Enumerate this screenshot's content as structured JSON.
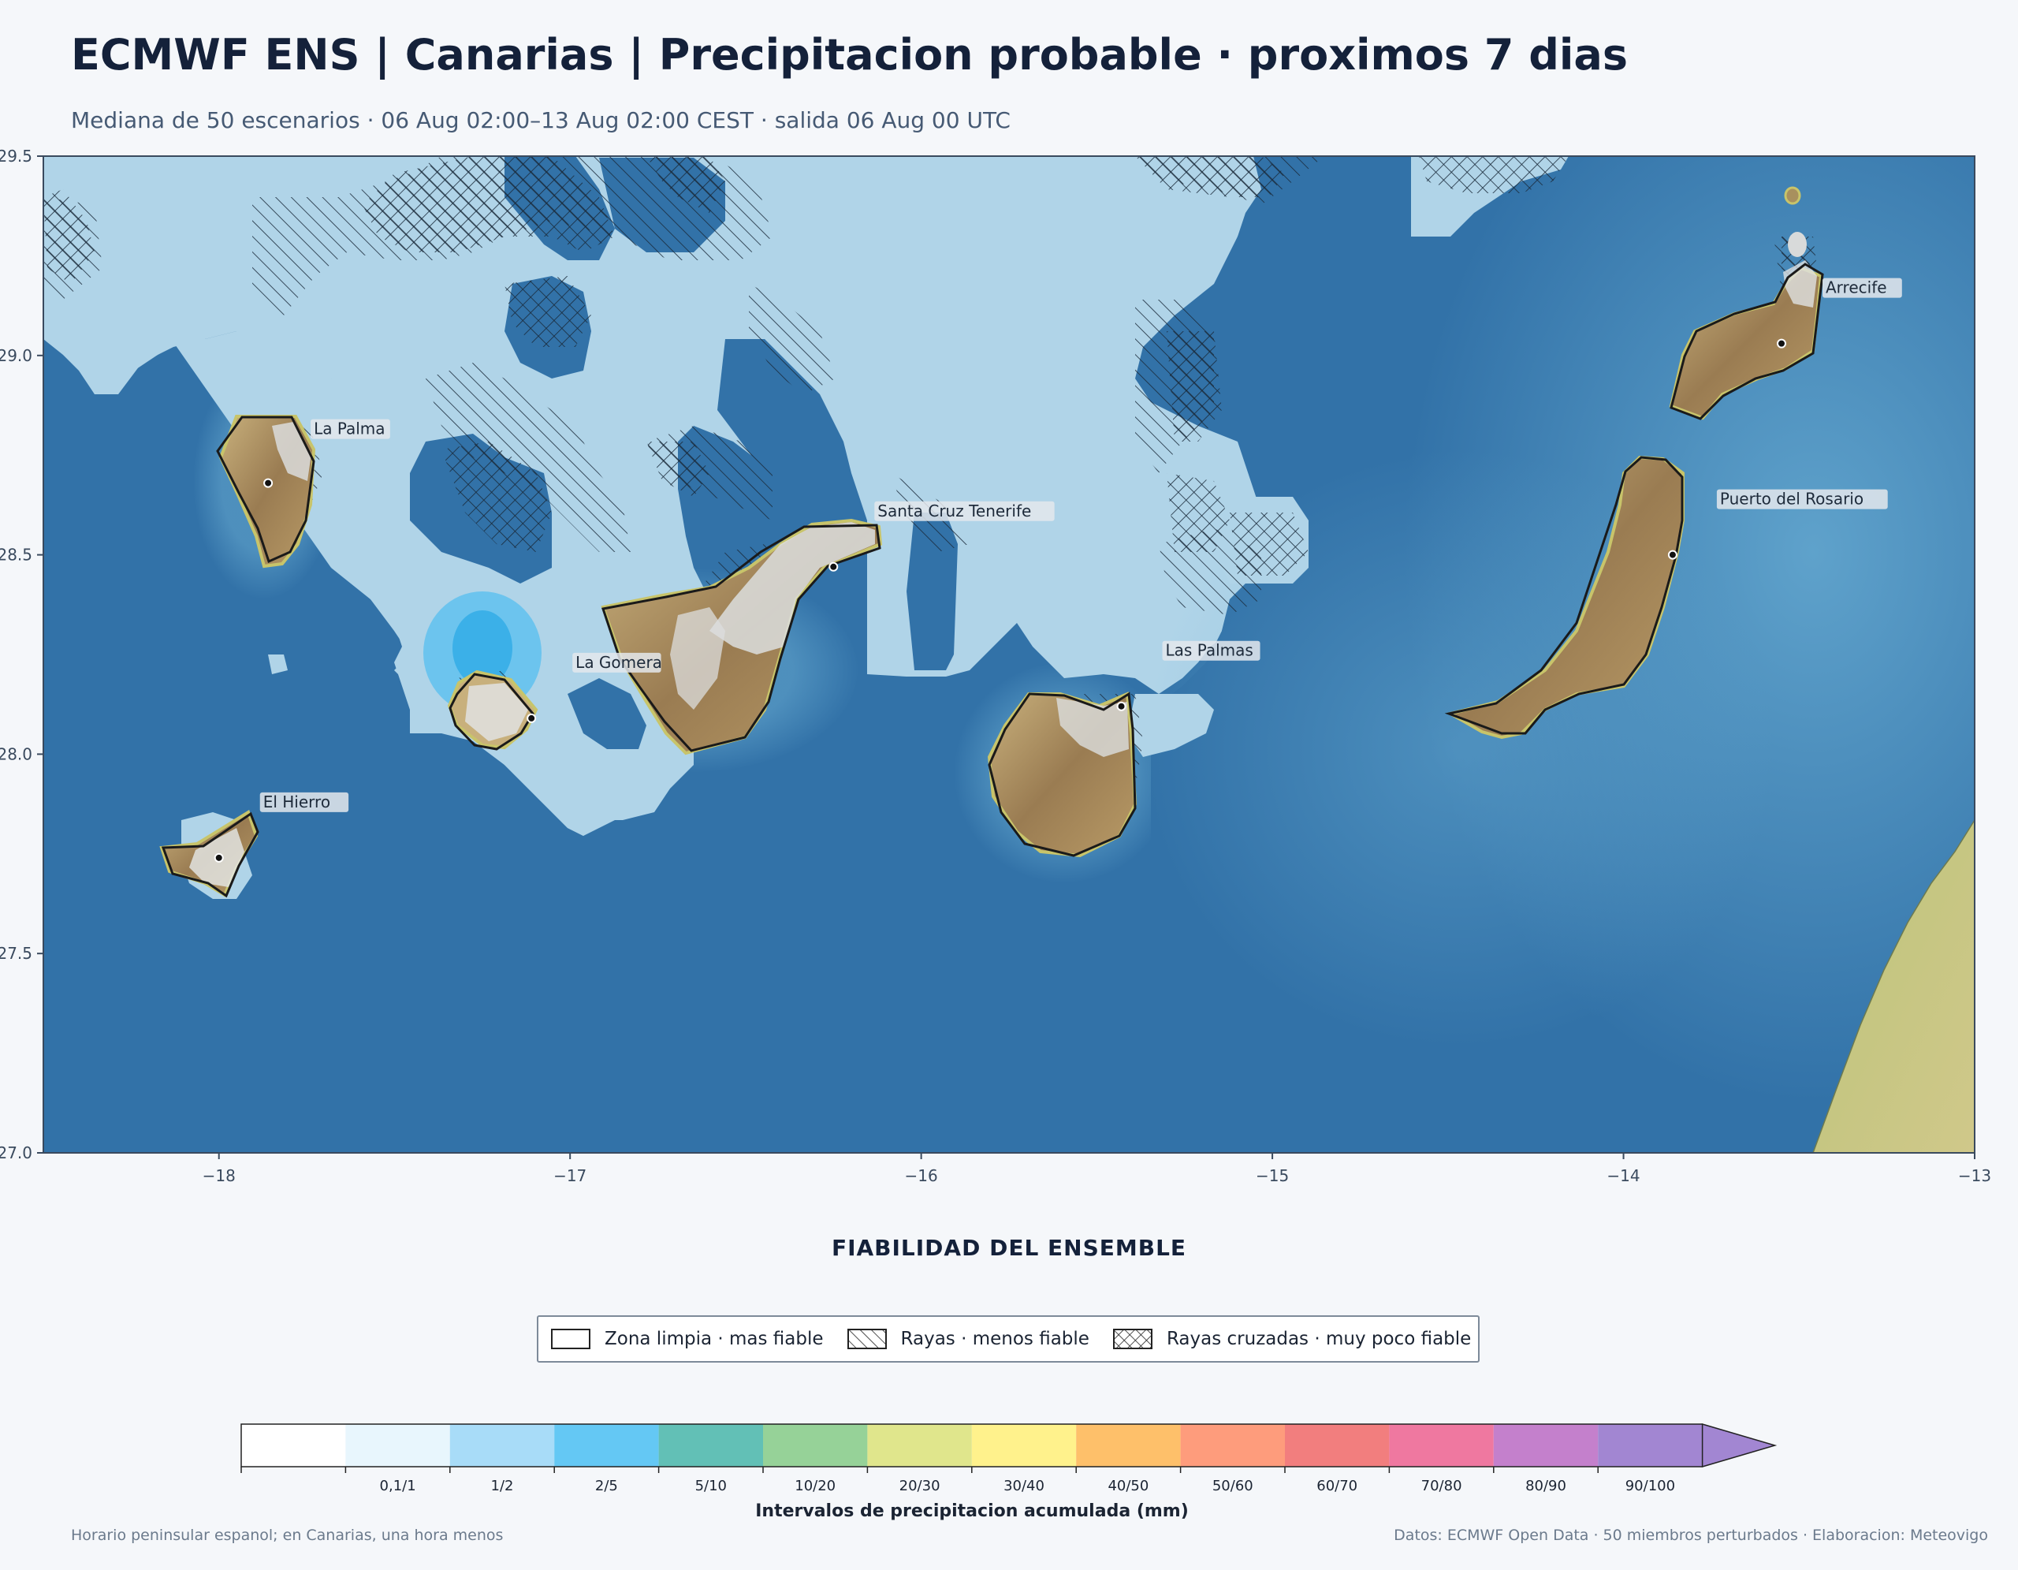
{
  "title": "ECMWF ENS | Canarias | Precipitacion probable · proximos 7 dias",
  "subtitle": "Mediana de 50 escenarios · 06 Aug 02:00–13 Aug 02:00 CEST · salida 06 Aug 00 UTC",
  "map": {
    "x_ticks": [
      "−18",
      "−17",
      "−16",
      "−15",
      "−14",
      "−13"
    ],
    "y_ticks": [
      "29.5",
      "29.0",
      "28.5",
      "28.0",
      "27.5",
      "27.0"
    ],
    "lon_range": [
      -18.5,
      -13
    ],
    "lat_range": [
      27,
      29.5
    ],
    "colors": {
      "sea": "#3272a8",
      "sea_light": "#5b9ec8",
      "precip_light": "#b0d4e8",
      "precip_mid": "#6cc4ee",
      "precip_core": "#3bb0e8",
      "land": "#a8905e",
      "africa": "#c2c47c"
    },
    "cities": [
      {
        "name": "La Palma",
        "lon": -17.86,
        "lat": 28.68
      },
      {
        "name": "Santa Cruz Tenerife",
        "lon": -16.25,
        "lat": 28.47
      },
      {
        "name": "La Gomera",
        "lon": -17.11,
        "lat": 28.09
      },
      {
        "name": "El Hierro",
        "lon": -18.0,
        "lat": 27.74
      },
      {
        "name": "Las Palmas",
        "lon": -15.43,
        "lat": 28.12
      },
      {
        "name": "Puerto del Rosario",
        "lon": -13.86,
        "lat": 28.5
      },
      {
        "name": "Arrecife",
        "lon": -13.55,
        "lat": 29.03
      }
    ]
  },
  "reliability": {
    "title": "FIABILIDAD DEL ENSEMBLE",
    "items": [
      {
        "label": "Zona limpia · mas fiable",
        "pattern": "none"
      },
      {
        "label": "Rayas · menos fiable",
        "pattern": "hatch"
      },
      {
        "label": "Rayas cruzadas · muy poco fiable",
        "pattern": "crosshatch"
      }
    ]
  },
  "colorbar": {
    "label": "Intervalos de precipitacion acumulada (mm)",
    "bins": [
      {
        "label": "",
        "color": "#ffffff"
      },
      {
        "label": "0,1/1",
        "color": "#e8f6fd"
      },
      {
        "label": "1/2",
        "color": "#a8dcf8"
      },
      {
        "label": "2/5",
        "color": "#64c8f4"
      },
      {
        "label": "5/10",
        "color": "#62c0b6"
      },
      {
        "label": "10/20",
        "color": "#96d298"
      },
      {
        "label": "20/30",
        "color": "#e0e68c"
      },
      {
        "label": "30/40",
        "color": "#fff28c"
      },
      {
        "label": "40/50",
        "color": "#fec06a"
      },
      {
        "label": "50/60",
        "color": "#fe9c7c"
      },
      {
        "label": "60/70",
        "color": "#f27e7e"
      },
      {
        "label": "70/80",
        "color": "#ef78a0"
      },
      {
        "label": "80/90",
        "color": "#c480cc"
      },
      {
        "label": "90/100",
        "color": "#a286d2"
      }
    ],
    "extend_color": "#a286d2"
  },
  "footer": {
    "left": "Horario peninsular espanol; en Canarias, una hora menos",
    "right": "Datos: ECMWF Open Data · 50 miembros perturbados · Elaboracion: Meteovigo"
  }
}
